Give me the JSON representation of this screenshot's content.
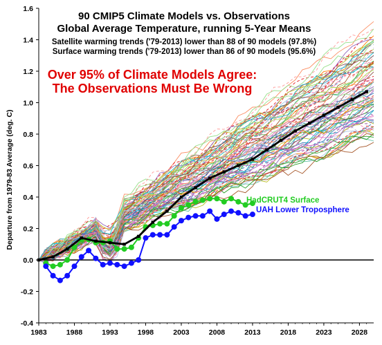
{
  "chart_data": {
    "type": "line",
    "title": "90 CMIP5 Climate Models vs. Observations",
    "subtitle": "Global Average Temperature, running 5-Year Means",
    "notes": [
      "Satellite warming trends ('79-2013) lower than 88 of 90 models (97.8%)",
      "Surface warming trends ('79-2013) lower than 86 of 90 models (95.6%)"
    ],
    "banner": [
      "Over 95% of Climate Models Agree:",
      "The Observations Must Be Wrong"
    ],
    "ylabel": "Departure from 1979-83 Average (deg. C)",
    "xlabel": "",
    "xlim": [
      1983,
      2030
    ],
    "ylim": [
      -0.4,
      1.6
    ],
    "x_ticks": [
      "1983",
      "1988",
      "1993",
      "1998",
      "2003",
      "2008",
      "2013",
      "2018",
      "2023",
      "2028"
    ],
    "y_ticks": [
      "-0.4",
      "-0.2",
      "0.0",
      "0.2",
      "0.4",
      "0.6",
      "0.8",
      "1.0",
      "1.2",
      "1.4",
      "1.6"
    ],
    "grid": false,
    "series": [
      {
        "name": "HadCRUT4 Surface",
        "color": "#22cc22",
        "x": [
          1984,
          1985,
          1986,
          1987,
          1988,
          1989,
          1990,
          1991,
          1992,
          1993,
          1994,
          1995,
          1996,
          1997,
          1998,
          1999,
          2000,
          2001,
          2002,
          2003,
          2004,
          2005,
          2006,
          2007,
          2008,
          2009,
          2010,
          2011,
          2012,
          2013
        ],
        "y": [
          -0.02,
          -0.04,
          -0.03,
          0.0,
          0.08,
          0.13,
          0.13,
          0.11,
          0.11,
          0.12,
          0.07,
          0.07,
          0.08,
          0.14,
          0.21,
          0.22,
          0.23,
          0.23,
          0.28,
          0.33,
          0.35,
          0.37,
          0.38,
          0.39,
          0.39,
          0.37,
          0.39,
          0.37,
          0.35,
          0.36
        ]
      },
      {
        "name": "UAH Lower Troposphere",
        "color": "#1010ff",
        "x": [
          1984,
          1985,
          1986,
          1987,
          1988,
          1989,
          1990,
          1991,
          1992,
          1993,
          1994,
          1995,
          1996,
          1997,
          1998,
          1999,
          2000,
          2001,
          2002,
          2003,
          2004,
          2005,
          2006,
          2007,
          2008,
          2009,
          2010,
          2011,
          2012,
          2013
        ],
        "y": [
          -0.04,
          -0.1,
          -0.13,
          -0.1,
          -0.04,
          0.02,
          0.06,
          0.01,
          -0.03,
          -0.02,
          -0.03,
          -0.04,
          -0.02,
          0.0,
          0.14,
          0.16,
          0.16,
          0.16,
          0.21,
          0.25,
          0.27,
          0.28,
          0.28,
          0.31,
          0.26,
          0.29,
          0.31,
          0.3,
          0.28,
          0.29
        ]
      },
      {
        "name": "",
        "color": "#000000",
        "x": [
          1983,
          1985,
          1987,
          1989,
          1991,
          1993,
          1995,
          1997,
          1999,
          2001,
          2003,
          2005,
          2007,
          2009,
          2011,
          2013,
          2015,
          2017,
          2019,
          2021,
          2023,
          2025,
          2027,
          2029
        ],
        "y": [
          0.0,
          0.02,
          0.07,
          0.14,
          0.12,
          0.11,
          0.1,
          0.15,
          0.24,
          0.31,
          0.4,
          0.46,
          0.52,
          0.56,
          0.6,
          0.64,
          0.7,
          0.76,
          0.82,
          0.87,
          0.92,
          0.97,
          1.02,
          1.07
        ]
      }
    ]
  },
  "labels": {
    "hadcrut": "HadCRUT4 Surface",
    "uah": "UAH Lower Troposphere"
  }
}
